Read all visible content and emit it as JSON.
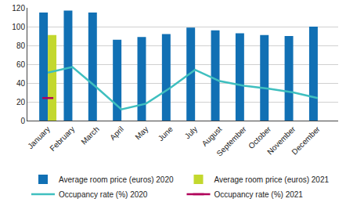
{
  "chart_data": {
    "type": "bar",
    "categories": [
      "January",
      "February",
      "March",
      "April",
      "May",
      "June",
      "July",
      "August",
      "September",
      "October",
      "November",
      "December"
    ],
    "series": [
      {
        "name": "Average room price (euros) 2020",
        "type": "bar",
        "color": "#1170b4",
        "values": [
          115,
          117,
          115,
          86,
          89,
          92,
          99,
          96,
          93,
          91,
          90,
          100
        ]
      },
      {
        "name": "Average room price (euros) 2021",
        "type": "bar",
        "color": "#c3d82e",
        "values": [
          91,
          null,
          null,
          null,
          null,
          null,
          null,
          null,
          null,
          null,
          null,
          null
        ]
      },
      {
        "name": "Occupancy rate (%) 2020",
        "type": "line",
        "color": "#3fbfbf",
        "values": [
          51,
          57,
          35,
          12,
          18,
          35,
          54,
          42,
          37,
          34,
          30,
          24
        ]
      },
      {
        "name": "Occupancy rate (%) 2021",
        "type": "line",
        "color": "#b0005a",
        "marker": "dash",
        "values": [
          24,
          null,
          null,
          null,
          null,
          null,
          null,
          null,
          null,
          null,
          null,
          null
        ]
      }
    ],
    "ylim": [
      0,
      120
    ],
    "yticks": [
      0,
      20,
      40,
      60,
      80,
      100,
      120
    ],
    "grid": true,
    "legend": "bottom"
  }
}
